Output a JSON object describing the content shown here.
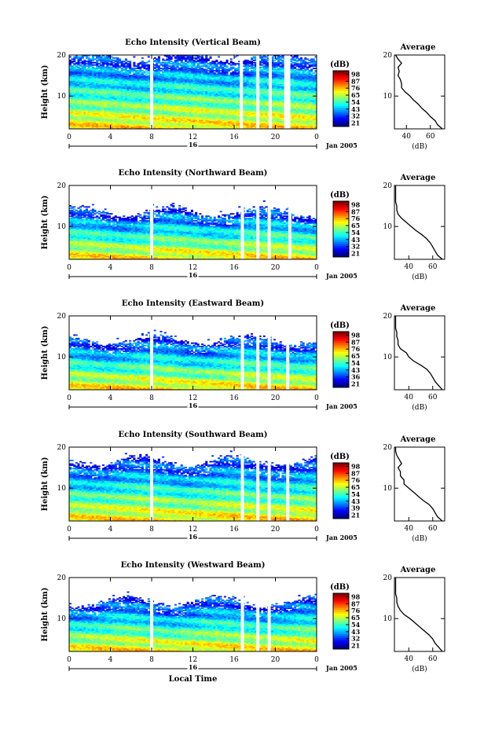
{
  "chart_data": [
    {
      "type": "heatmap",
      "title": "Echo Intensity (Vertical Beam)",
      "ylabel": "Height (km)",
      "xlim": [
        0,
        24
      ],
      "ylim": [
        2,
        20
      ],
      "xticks": [
        "0",
        "4",
        "8",
        "12",
        "16",
        "20",
        "0"
      ],
      "yticks": [
        "10",
        "20"
      ],
      "date_label": "16",
      "date_suffix": "Jan 2005",
      "colorbar": {
        "label": "(dB)",
        "ticks": [
          "98",
          "87",
          "76",
          "65",
          "54",
          "43",
          "32",
          "21"
        ]
      },
      "echo_top_km": 19.5,
      "gaps_hours": [
        8.0,
        16.7,
        18.3,
        19.5,
        21.0,
        21.3
      ],
      "average": {
        "title": "Average",
        "xlabel": "(dB)",
        "xlim": [
          30,
          72
        ],
        "xticks": [
          "40",
          "60"
        ],
        "yticks": [
          "10",
          "20"
        ],
        "profile": [
          [
            2,
            70
          ],
          [
            3,
            66
          ],
          [
            4,
            64
          ],
          [
            5,
            60
          ],
          [
            6,
            57
          ],
          [
            7,
            53
          ],
          [
            8,
            50
          ],
          [
            9,
            46
          ],
          [
            10,
            43
          ],
          [
            11,
            39
          ],
          [
            12,
            36
          ],
          [
            13,
            36
          ],
          [
            14,
            35
          ],
          [
            15,
            33
          ],
          [
            16,
            34
          ],
          [
            17,
            33
          ],
          [
            18,
            36
          ],
          [
            19,
            33
          ],
          [
            20,
            31
          ]
        ]
      }
    },
    {
      "type": "heatmap",
      "title": "Echo Intensity (Northward Beam)",
      "ylabel": "Height (km)",
      "xlim": [
        0,
        24
      ],
      "ylim": [
        2,
        20
      ],
      "xticks": [
        "0",
        "4",
        "8",
        "12",
        "16",
        "20",
        "0"
      ],
      "yticks": [
        "10",
        "20"
      ],
      "date_label": "16",
      "date_suffix": "Jan 2005",
      "colorbar": {
        "label": "(dB)",
        "ticks": [
          "98",
          "87",
          "76",
          "65",
          "54",
          "43",
          "32",
          "21"
        ]
      },
      "echo_top_km": 13.5,
      "gaps_hours": [
        8.0,
        16.8,
        18.3,
        19.4,
        21.4
      ],
      "average": {
        "title": "Average",
        "xlabel": "(dB)",
        "xlim": [
          28,
          70
        ],
        "xticks": [
          "40",
          "60"
        ],
        "yticks": [
          "10",
          "20"
        ],
        "profile": [
          [
            2,
            68
          ],
          [
            3,
            64
          ],
          [
            4,
            62
          ],
          [
            5,
            60
          ],
          [
            6,
            58
          ],
          [
            7,
            55
          ],
          [
            8,
            51
          ],
          [
            9,
            46
          ],
          [
            10,
            42
          ],
          [
            11,
            38
          ],
          [
            12,
            34
          ],
          [
            13,
            31
          ],
          [
            14,
            30
          ],
          [
            15,
            30
          ],
          [
            16,
            29
          ],
          [
            17,
            29
          ],
          [
            18,
            29
          ],
          [
            19,
            29
          ],
          [
            20,
            29
          ]
        ]
      }
    },
    {
      "type": "heatmap",
      "title": "Echo Intensity (Eastward Beam)",
      "ylabel": "Height (km)",
      "xlim": [
        0,
        24
      ],
      "ylim": [
        2,
        20
      ],
      "xticks": [
        "0",
        "4",
        "8",
        "12",
        "16",
        "20",
        "0"
      ],
      "yticks": [
        "10",
        "20"
      ],
      "date_label": "16",
      "date_suffix": "Jan 2005",
      "colorbar": {
        "label": "(dB)",
        "ticks": [
          "98",
          "87",
          "76",
          "65",
          "54",
          "43",
          "36",
          "21"
        ]
      },
      "echo_top_km": 14.0,
      "gaps_hours": [
        8.0,
        16.8,
        18.3,
        19.4,
        21.2
      ],
      "average": {
        "title": "Average",
        "xlabel": "(dB)",
        "xlim": [
          28,
          70
        ],
        "xticks": [
          "40",
          "60"
        ],
        "yticks": [
          "10",
          "20"
        ],
        "profile": [
          [
            2,
            68
          ],
          [
            3,
            65
          ],
          [
            4,
            62
          ],
          [
            5,
            60
          ],
          [
            6,
            58
          ],
          [
            7,
            55
          ],
          [
            8,
            50
          ],
          [
            9,
            44
          ],
          [
            10,
            40
          ],
          [
            11,
            38
          ],
          [
            12,
            33
          ],
          [
            13,
            31
          ],
          [
            14,
            31
          ],
          [
            15,
            30
          ],
          [
            16,
            30
          ],
          [
            17,
            29
          ],
          [
            18,
            29
          ],
          [
            19,
            29
          ],
          [
            20,
            29
          ]
        ]
      }
    },
    {
      "type": "heatmap",
      "title": "Echo Intensity (Southward Beam)",
      "ylabel": "Height (km)",
      "xlim": [
        0,
        24
      ],
      "ylim": [
        2,
        20
      ],
      "xticks": [
        "0",
        "4",
        "8",
        "12",
        "16",
        "20",
        "0"
      ],
      "yticks": [
        "10",
        "20"
      ],
      "date_label": "16",
      "date_suffix": "Jan 2005",
      "colorbar": {
        "label": "(dB)",
        "ticks": [
          "98",
          "87",
          "76",
          "65",
          "54",
          "43",
          "39",
          "21"
        ]
      },
      "echo_top_km": 16.5,
      "gaps_hours": [
        8.0,
        16.8,
        18.3,
        19.4,
        21.2
      ],
      "average": {
        "title": "Average",
        "xlabel": "(dB)",
        "xlim": [
          28,
          70
        ],
        "xticks": [
          "40",
          "60"
        ],
        "yticks": [
          "10",
          "20"
        ],
        "profile": [
          [
            2,
            68
          ],
          [
            3,
            64
          ],
          [
            4,
            62
          ],
          [
            5,
            60
          ],
          [
            6,
            57
          ],
          [
            7,
            52
          ],
          [
            8,
            48
          ],
          [
            9,
            44
          ],
          [
            10,
            40
          ],
          [
            11,
            36
          ],
          [
            12,
            36
          ],
          [
            13,
            33
          ],
          [
            14,
            33
          ],
          [
            15,
            31
          ],
          [
            16,
            34
          ],
          [
            17,
            32
          ],
          [
            18,
            30
          ],
          [
            19,
            29
          ],
          [
            20,
            29
          ]
        ]
      }
    },
    {
      "type": "heatmap",
      "title": "Echo Intensity (Westward Beam)",
      "ylabel": "Height (km)",
      "xlim": [
        0,
        24
      ],
      "ylim": [
        2,
        20
      ],
      "xticks": [
        "0",
        "4",
        "8",
        "12",
        "16",
        "20",
        "0"
      ],
      "yticks": [
        "10",
        "20"
      ],
      "date_label": "16",
      "date_suffix": "Jan 2005",
      "xlabel": "Local Time",
      "colorbar": {
        "label": "(dB)",
        "ticks": [
          "98",
          "87",
          "76",
          "65",
          "54",
          "43",
          "32",
          "21"
        ]
      },
      "echo_top_km": 14.0,
      "gaps_hours": [
        8.0,
        16.8,
        18.3,
        19.4
      ],
      "average": {
        "title": "Average",
        "xlabel": "(dB)",
        "xlim": [
          28,
          70
        ],
        "xticks": [
          "40",
          "60"
        ],
        "yticks": [
          "10",
          "20"
        ],
        "profile": [
          [
            2,
            68
          ],
          [
            3,
            65
          ],
          [
            4,
            62
          ],
          [
            5,
            60
          ],
          [
            6,
            57
          ],
          [
            7,
            53
          ],
          [
            8,
            49
          ],
          [
            9,
            45
          ],
          [
            10,
            41
          ],
          [
            11,
            36
          ],
          [
            12,
            33
          ],
          [
            13,
            31
          ],
          [
            14,
            30
          ],
          [
            15,
            30
          ],
          [
            16,
            29
          ],
          [
            17,
            29
          ],
          [
            18,
            29
          ],
          [
            19,
            29
          ],
          [
            20,
            29
          ]
        ]
      }
    }
  ]
}
